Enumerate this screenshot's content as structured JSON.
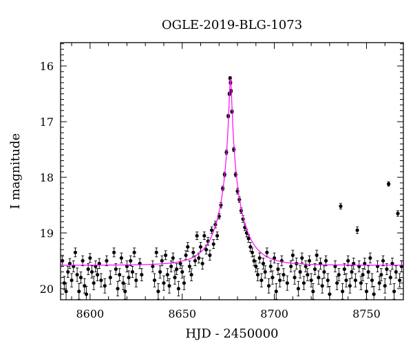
{
  "chart_data": {
    "type": "scatter",
    "title": "OGLE-2019-BLG-1073",
    "xlabel": "HJD - 2450000",
    "ylabel": "I magnitude",
    "xlim": [
      8584,
      8770
    ],
    "ylim": [
      20.2,
      15.58
    ],
    "y_inverted": true,
    "grid": false,
    "x_ticks": [
      8600,
      8650,
      8700,
      8750
    ],
    "y_ticks": [
      16,
      17,
      18,
      19,
      20
    ],
    "x_tick_labels": [
      "8600",
      "8650",
      "8700",
      "8750"
    ],
    "y_tick_labels": [
      "16",
      "17",
      "18",
      "19",
      "20"
    ],
    "colors": {
      "points": "#000000",
      "model": "#ff00ff",
      "frame": "#000000"
    },
    "model": {
      "name": "",
      "baseline_mag": 19.58,
      "peak_mag": 16.22,
      "t0": 8676.2,
      "tE": 13.5,
      "u0": 0.048
    },
    "series": [
      {
        "name": "",
        "points": [
          [
            8585,
            19.5,
            0.08
          ],
          [
            8586,
            19.9,
            0.12
          ],
          [
            8587,
            20.05,
            0.15
          ],
          [
            8588,
            19.7,
            0.1
          ],
          [
            8589,
            19.55,
            0.09
          ],
          [
            8590,
            19.85,
            0.12
          ],
          [
            8591,
            19.6,
            0.1
          ],
          [
            8592,
            19.35,
            0.08
          ],
          [
            8593,
            19.75,
            0.12
          ],
          [
            8594,
            20.05,
            0.14
          ],
          [
            8595,
            19.8,
            0.1
          ],
          [
            8596,
            19.5,
            0.09
          ],
          [
            8597,
            19.95,
            0.13
          ],
          [
            8598,
            20.1,
            0.14
          ],
          [
            8599,
            19.65,
            0.1
          ],
          [
            8600,
            19.45,
            0.08
          ],
          [
            8601,
            19.7,
            0.11
          ],
          [
            8602,
            19.9,
            0.12
          ],
          [
            8603,
            19.6,
            0.1
          ],
          [
            8604,
            19.75,
            0.11
          ],
          [
            8605,
            19.55,
            0.09
          ],
          [
            8606,
            19.85,
            0.12
          ],
          [
            8608,
            19.95,
            0.13
          ],
          [
            8609,
            19.5,
            0.09
          ],
          [
            8611,
            19.8,
            0.12
          ],
          [
            8613,
            19.35,
            0.08
          ],
          [
            8614,
            19.65,
            0.1
          ],
          [
            8615,
            20.0,
            0.13
          ],
          [
            8616,
            19.75,
            0.11
          ],
          [
            8617,
            19.45,
            0.09
          ],
          [
            8618,
            19.9,
            0.12
          ],
          [
            8619,
            20.05,
            0.14
          ],
          [
            8620,
            19.6,
            0.1
          ],
          [
            8621,
            19.8,
            0.12
          ],
          [
            8622,
            19.5,
            0.09
          ],
          [
            8623,
            19.7,
            0.1
          ],
          [
            8624,
            19.35,
            0.08
          ],
          [
            8625,
            19.85,
            0.12
          ],
          [
            8627,
            19.55,
            0.09
          ],
          [
            8628,
            19.75,
            0.11
          ],
          [
            8634,
            19.6,
            0.1
          ],
          [
            8635,
            19.85,
            0.12
          ],
          [
            8636,
            19.35,
            0.08
          ],
          [
            8637,
            20.05,
            0.14
          ],
          [
            8638,
            19.7,
            0.11
          ],
          [
            8639,
            19.5,
            0.09
          ],
          [
            8640,
            19.9,
            0.13
          ],
          [
            8641,
            19.4,
            0.08
          ],
          [
            8642,
            19.75,
            0.11
          ],
          [
            8643,
            19.95,
            0.13
          ],
          [
            8644,
            19.6,
            0.1
          ],
          [
            8645,
            19.45,
            0.09
          ],
          [
            8646,
            19.8,
            0.12
          ],
          [
            8647,
            19.65,
            0.1
          ],
          [
            8648,
            20.0,
            0.13
          ],
          [
            8649,
            19.55,
            0.09
          ],
          [
            8650,
            19.7,
            0.11
          ],
          [
            8651,
            19.9,
            0.12
          ],
          [
            8652,
            19.4,
            0.08
          ],
          [
            8653,
            19.25,
            0.08
          ],
          [
            8654,
            19.6,
            0.1
          ],
          [
            8655,
            19.75,
            0.11
          ],
          [
            8656,
            19.35,
            0.08
          ],
          [
            8657,
            19.5,
            0.09
          ],
          [
            8658,
            19.05,
            0.07
          ],
          [
            8659,
            19.45,
            0.09
          ],
          [
            8660,
            19.25,
            0.08
          ],
          [
            8661,
            19.55,
            0.1
          ],
          [
            8662,
            19.05,
            0.07
          ],
          [
            8663,
            19.3,
            0.08
          ],
          [
            8664,
            19.15,
            0.07
          ],
          [
            8665,
            19.4,
            0.09
          ],
          [
            8666,
            18.95,
            0.06
          ],
          [
            8667,
            19.2,
            0.08
          ],
          [
            8668,
            18.85,
            0.06
          ],
          [
            8669,
            19.05,
            0.07
          ],
          [
            8670,
            18.7,
            0.05
          ],
          [
            8671,
            18.5,
            0.05
          ],
          [
            8672,
            18.2,
            0.04
          ],
          [
            8673,
            17.95,
            0.04
          ],
          [
            8674,
            17.55,
            0.04
          ],
          [
            8675,
            16.9,
            0.03
          ],
          [
            8675.6,
            16.5,
            0.03
          ],
          [
            8676,
            16.22,
            0.03
          ],
          [
            8676.2,
            16.3,
            0.03
          ],
          [
            8676.5,
            16.45,
            0.03
          ],
          [
            8677,
            16.82,
            0.03
          ],
          [
            8678,
            17.5,
            0.04
          ],
          [
            8679,
            17.95,
            0.04
          ],
          [
            8680,
            18.25,
            0.05
          ],
          [
            8681,
            18.4,
            0.05
          ],
          [
            8682,
            18.6,
            0.05
          ],
          [
            8683,
            18.75,
            0.06
          ],
          [
            8684,
            18.9,
            0.06
          ],
          [
            8685,
            19.0,
            0.07
          ],
          [
            8686,
            19.1,
            0.07
          ],
          [
            8687,
            19.25,
            0.08
          ],
          [
            8688,
            19.35,
            0.08
          ],
          [
            8689,
            19.5,
            0.09
          ],
          [
            8690,
            19.6,
            0.1
          ],
          [
            8691,
            19.75,
            0.11
          ],
          [
            8692,
            19.45,
            0.09
          ],
          [
            8693,
            19.85,
            0.12
          ],
          [
            8694,
            19.55,
            0.1
          ],
          [
            8695,
            19.7,
            0.11
          ],
          [
            8696,
            19.35,
            0.08
          ],
          [
            8697,
            19.95,
            0.13
          ],
          [
            8698,
            19.6,
            0.1
          ],
          [
            8699,
            19.8,
            0.12
          ],
          [
            8700,
            19.45,
            0.09
          ],
          [
            8701,
            20.05,
            0.14
          ],
          [
            8702,
            19.65,
            0.1
          ],
          [
            8703,
            19.85,
            0.12
          ],
          [
            8704,
            19.5,
            0.09
          ],
          [
            8705,
            19.75,
            0.11
          ],
          [
            8707,
            19.9,
            0.13
          ],
          [
            8709,
            19.6,
            0.1
          ],
          [
            8710,
            19.4,
            0.09
          ],
          [
            8711,
            19.8,
            0.12
          ],
          [
            8712,
            19.55,
            0.1
          ],
          [
            8713,
            20.0,
            0.13
          ],
          [
            8714,
            19.7,
            0.11
          ],
          [
            8715,
            19.45,
            0.09
          ],
          [
            8716,
            19.9,
            0.12
          ],
          [
            8717,
            19.6,
            0.1
          ],
          [
            8718,
            19.75,
            0.11
          ],
          [
            8719,
            19.5,
            0.09
          ],
          [
            8720,
            19.85,
            0.12
          ],
          [
            8721,
            20.05,
            0.14
          ],
          [
            8722,
            19.65,
            0.1
          ],
          [
            8723,
            19.4,
            0.09
          ],
          [
            8724,
            19.8,
            0.12
          ],
          [
            8725,
            19.55,
            0.1
          ],
          [
            8726,
            19.95,
            0.13
          ],
          [
            8727,
            19.7,
            0.11
          ],
          [
            8728,
            19.5,
            0.09
          ],
          [
            8729,
            19.85,
            0.12
          ],
          [
            8730,
            20.1,
            0.14
          ],
          [
            8733,
            19.6,
            0.1
          ],
          [
            8734,
            19.9,
            0.12
          ],
          [
            8735,
            19.75,
            0.11
          ],
          [
            8736,
            18.52,
            0.05
          ],
          [
            8737,
            20.05,
            0.14
          ],
          [
            8738,
            19.65,
            0.1
          ],
          [
            8739,
            19.85,
            0.12
          ],
          [
            8740,
            19.5,
            0.09
          ],
          [
            8741,
            19.95,
            0.13
          ],
          [
            8742,
            19.7,
            0.11
          ],
          [
            8743,
            19.55,
            0.1
          ],
          [
            8744,
            19.85,
            0.12
          ],
          [
            8745,
            18.95,
            0.06
          ],
          [
            8746,
            19.6,
            0.1
          ],
          [
            8747,
            19.9,
            0.12
          ],
          [
            8748,
            19.75,
            0.11
          ],
          [
            8749,
            19.55,
            0.1
          ],
          [
            8750,
            20.05,
            0.14
          ],
          [
            8751,
            19.7,
            0.11
          ],
          [
            8752,
            19.45,
            0.09
          ],
          [
            8753,
            19.85,
            0.12
          ],
          [
            8754,
            20.1,
            0.14
          ],
          [
            8756,
            19.6,
            0.1
          ],
          [
            8757,
            19.9,
            0.12
          ],
          [
            8758,
            19.75,
            0.11
          ],
          [
            8759,
            19.5,
            0.09
          ],
          [
            8760,
            19.95,
            0.13
          ],
          [
            8761,
            19.65,
            0.1
          ],
          [
            8762,
            18.12,
            0.04
          ],
          [
            8763,
            19.8,
            0.12
          ],
          [
            8764,
            19.55,
            0.1
          ],
          [
            8765,
            20.05,
            0.14
          ],
          [
            8766,
            19.7,
            0.11
          ],
          [
            8767,
            18.65,
            0.05
          ],
          [
            8768,
            19.85,
            0.12
          ],
          [
            8769,
            19.6,
            0.1
          ]
        ]
      }
    ]
  }
}
